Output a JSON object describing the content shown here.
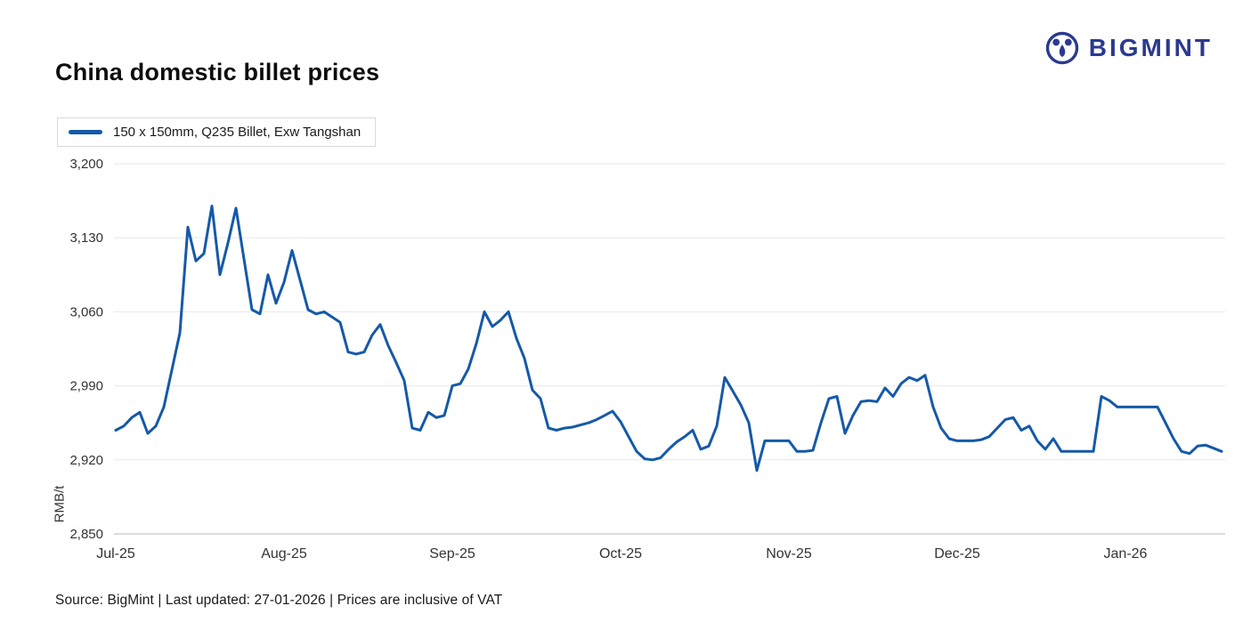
{
  "header": {
    "title": "China domestic billet prices",
    "logo_text": "BIGMINT"
  },
  "legend": {
    "label": "150 x 150mm, Q235 Billet, Exw Tangshan"
  },
  "footer": {
    "text": "Source: BigMint | Last updated: 27-01-2026 | Prices are inclusive of VAT"
  },
  "colors": {
    "brand": "#2b3990",
    "line": "#1559a8",
    "grid": "#e8e8e8",
    "axis": "#b8b8b8",
    "tick_text": "#333333"
  },
  "chart_data": {
    "type": "line",
    "title": "China domestic billet prices",
    "xlabel": "",
    "ylabel": "RMB/t",
    "ylim": [
      2850,
      3200
    ],
    "yticks": [
      2850,
      2920,
      2990,
      3060,
      3130,
      3200
    ],
    "grid": "horizontal",
    "legend_position": "top-left",
    "x_tick_labels": [
      "Jul-25",
      "Aug-25",
      "Sep-25",
      "Oct-25",
      "Nov-25",
      "Dec-25",
      "Jan-26"
    ],
    "x_tick_indices": [
      0,
      21,
      42,
      63,
      84,
      105,
      126
    ],
    "series": [
      {
        "name": "150 x 150mm, Q235 Billet, Exw Tangshan",
        "color": "#1559a8",
        "values": [
          2948,
          2952,
          2960,
          2965,
          2945,
          2952,
          2970,
          3005,
          3040,
          3140,
          3108,
          3115,
          3160,
          3095,
          3125,
          3158,
          3110,
          3062,
          3058,
          3095,
          3068,
          3088,
          3118,
          3090,
          3062,
          3058,
          3060,
          3055,
          3050,
          3022,
          3020,
          3022,
          3038,
          3048,
          3028,
          3012,
          2995,
          2950,
          2948,
          2965,
          2960,
          2962,
          2990,
          2992,
          3006,
          3030,
          3060,
          3046,
          3052,
          3060,
          3035,
          3016,
          2986,
          2978,
          2950,
          2948,
          2950,
          2951,
          2953,
          2955,
          2958,
          2962,
          2966,
          2956,
          2942,
          2928,
          2921,
          2920,
          2922,
          2930,
          2937,
          2942,
          2948,
          2930,
          2933,
          2952,
          2998,
          2985,
          2972,
          2955,
          2910,
          2938,
          2938,
          2938,
          2938,
          2928,
          2928,
          2929,
          2955,
          2978,
          2980,
          2945,
          2962,
          2975,
          2976,
          2975,
          2988,
          2980,
          2992,
          2998,
          2995,
          3000,
          2970,
          2950,
          2940,
          2938,
          2938,
          2938,
          2939,
          2942,
          2950,
          2958,
          2960,
          2948,
          2952,
          2938,
          2930,
          2940,
          2928,
          2928,
          2928,
          2928,
          2928,
          2980,
          2976,
          2970,
          2970,
          2970,
          2970,
          2970,
          2970,
          2955,
          2940,
          2928,
          2926,
          2933,
          2934,
          2931,
          2928
        ]
      }
    ]
  }
}
